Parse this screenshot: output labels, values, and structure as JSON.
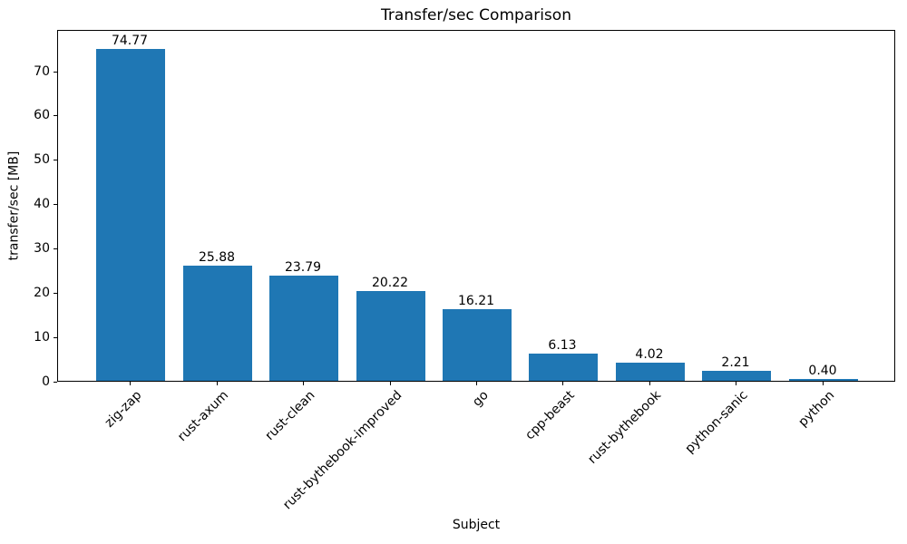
{
  "chart_data": {
    "type": "bar",
    "title": "Transfer/sec Comparison",
    "xlabel": "Subject",
    "ylabel": "transfer/sec [MB]",
    "categories": [
      "zig-zap",
      "rust-axum",
      "rust-clean",
      "rust-bythebook-improved",
      "go",
      "cpp-beast",
      "rust-bythebook",
      "python-sanic",
      "python"
    ],
    "values": [
      74.77,
      25.88,
      23.79,
      20.22,
      16.21,
      6.13,
      4.02,
      2.21,
      0.4
    ],
    "value_labels": [
      "74.77",
      "25.88",
      "23.79",
      "20.22",
      "16.21",
      "6.13",
      "4.02",
      "2.21",
      "0.40"
    ],
    "yticks": [
      0,
      10,
      20,
      30,
      40,
      50,
      60,
      70
    ],
    "ylim": [
      0,
      79.3
    ],
    "bar_color": "#1f77b4",
    "background_color": "#ffffff",
    "spine_color": "#000000",
    "grid": false,
    "legend": null,
    "x_tick_rotation_deg": 45
  }
}
